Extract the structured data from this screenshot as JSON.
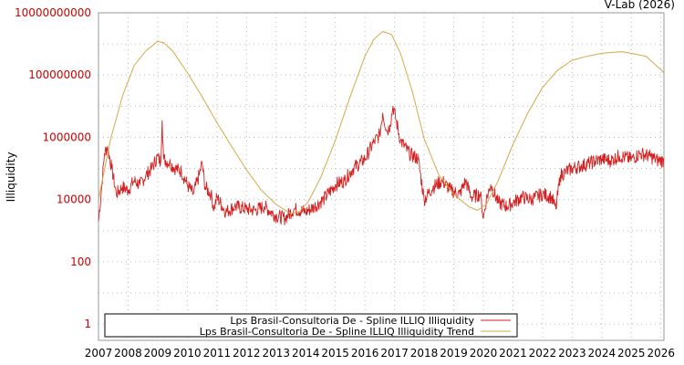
{
  "source_label": "V-Lab (2026)",
  "colors": {
    "illiquidity": "#d42020",
    "trend": "#d4a94a",
    "ytick": "#cc0000",
    "grid": "#bbbbbb",
    "frame": "#999999"
  },
  "chart_data": {
    "type": "line",
    "title": "",
    "xlabel": "",
    "ylabel": "Illiquidity",
    "yscale": "log",
    "ylim": [
      0.3,
      10000000000
    ],
    "xlim": [
      2007,
      2026.1
    ],
    "grid": true,
    "legend_position": "bottom-left",
    "x_ticks": [
      "2007",
      "2008",
      "2009",
      "2010",
      "2011",
      "2012",
      "2013",
      "2014",
      "2015",
      "2016",
      "2017",
      "2018",
      "2019",
      "2020",
      "2021",
      "2022",
      "2023",
      "2024",
      "2025",
      "2026"
    ],
    "y_ticks": [
      {
        "value": 1,
        "label": "1"
      },
      {
        "value": 100,
        "label": "100"
      },
      {
        "value": 10000,
        "label": "10000"
      },
      {
        "value": 1000000,
        "label": "1000000"
      },
      {
        "value": 100000000,
        "label": "100000000"
      },
      {
        "value": 10000000000,
        "label": "10000000000"
      }
    ],
    "series": [
      {
        "name": "Lps Brasil-Consultoria De - Spline ILLIQ Illiquidity",
        "color": "#d42020",
        "x": [
          2007.0,
          2007.1,
          2007.2,
          2007.3,
          2007.45,
          2007.6,
          2007.8,
          2008.0,
          2008.2,
          2008.4,
          2008.6,
          2008.8,
          2009.0,
          2009.1,
          2009.15,
          2009.2,
          2009.4,
          2009.6,
          2009.8,
          2010.0,
          2010.2,
          2010.4,
          2010.5,
          2010.6,
          2010.8,
          2010.9,
          2011.0,
          2011.3,
          2011.6,
          2012.0,
          2012.3,
          2012.6,
          2013.0,
          2013.3,
          2013.6,
          2014.0,
          2014.3,
          2014.6,
          2015.0,
          2015.3,
          2015.6,
          2016.0,
          2016.3,
          2016.5,
          2016.6,
          2016.75,
          2016.85,
          2016.95,
          2017.2,
          2017.5,
          2017.8,
          2018.0,
          2018.3,
          2018.6,
          2018.9,
          2019.2,
          2019.4,
          2019.6,
          2019.9,
          2020.0,
          2020.1,
          2020.25,
          2020.5,
          2020.8,
          2021.0,
          2021.3,
          2021.6,
          2022.0,
          2022.3,
          2022.45,
          2022.6,
          2022.8,
          2023.0,
          2023.3,
          2023.6,
          2024.0,
          2024.3,
          2024.6,
          2025.0,
          2025.3,
          2025.6,
          2025.9,
          2026.1
        ],
        "values": [
          2000,
          20000,
          300000,
          500000,
          100000,
          15000,
          25000,
          20000,
          40000,
          30000,
          60000,
          100000,
          250000,
          150000,
          3500000,
          200000,
          150000,
          100000,
          80000,
          30000,
          15000,
          60000,
          150000,
          25000,
          15000,
          5000,
          12000,
          4000,
          6000,
          5000,
          4500,
          6000,
          3000,
          2500,
          5000,
          4000,
          6000,
          10000,
          30000,
          40000,
          100000,
          200000,
          700000,
          1200000,
          6000000,
          1500000,
          2500000,
          10000000,
          800000,
          300000,
          200000,
          10000,
          25000,
          40000,
          20000,
          15000,
          40000,
          12000,
          15000,
          2500,
          10000,
          30000,
          8000,
          6000,
          8000,
          12000,
          10000,
          15000,
          12000,
          5000,
          60000,
          80000,
          100000,
          120000,
          150000,
          200000,
          180000,
          250000,
          200000,
          300000,
          250000,
          180000,
          180000
        ]
      },
      {
        "name": "Lps Brasil-Consultoria De - Spline ILLIQ Illiquidity Trend",
        "color": "#d4a94a",
        "x": [
          2007.0,
          2007.4,
          2007.8,
          2008.2,
          2008.6,
          2009.0,
          2009.2,
          2009.5,
          2010.0,
          2010.5,
          2011.0,
          2011.5,
          2012.0,
          2012.5,
          2013.0,
          2013.5,
          2013.8,
          2014.1,
          2014.5,
          2015.0,
          2015.5,
          2016.0,
          2016.3,
          2016.6,
          2016.9,
          2017.2,
          2017.6,
          2018.0,
          2018.5,
          2019.0,
          2019.5,
          2019.8,
          2020.1,
          2020.5,
          2021.0,
          2021.5,
          2022.0,
          2022.5,
          2023.0,
          2023.5,
          2024.0,
          2024.5,
          2024.7,
          2025.0,
          2025.5,
          2026.1
        ],
        "values": [
          10000,
          800000,
          20000000,
          200000000,
          600000000,
          1200000000,
          1100000000,
          600000000,
          120000000,
          20000000,
          3000000,
          500000,
          90000,
          20000,
          7000,
          3500,
          4200,
          9000,
          50000,
          800000,
          20000000,
          400000000,
          1400000000,
          2500000000,
          2000000000,
          500000000,
          30000000,
          900000,
          60000,
          15000,
          6000,
          4500,
          7000,
          40000,
          600000,
          6000000,
          40000000,
          140000000,
          300000000,
          400000000,
          500000000,
          550000000,
          560000000,
          500000000,
          400000000,
          120000000
        ]
      }
    ]
  }
}
